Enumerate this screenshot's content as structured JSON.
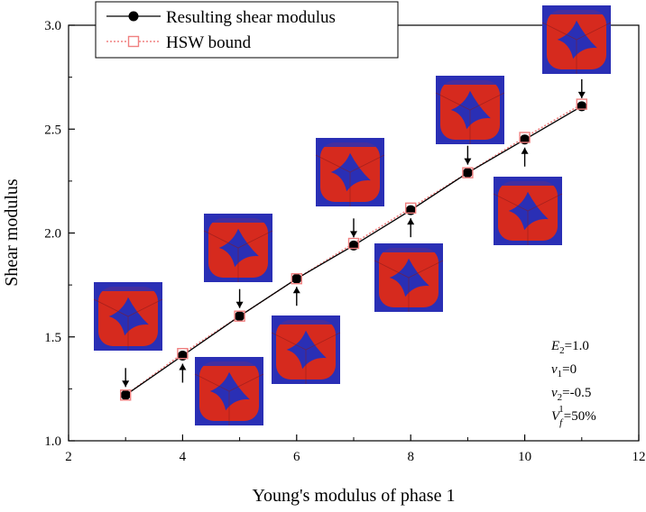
{
  "chart_data": {
    "type": "line",
    "xlabel": "Young's modulus of phase 1",
    "ylabel": "Shear modulus",
    "xlim": [
      2,
      12
    ],
    "ylim": [
      1.0,
      3.0
    ],
    "x_ticks": [
      2,
      4,
      6,
      8,
      10,
      12
    ],
    "y_ticks": [
      1.0,
      1.5,
      2.0,
      2.5,
      3.0
    ],
    "x_tick_labels": [
      "2",
      "4",
      "6",
      "8",
      "10",
      "12"
    ],
    "y_tick_labels": [
      "1.0",
      "1.5",
      "2.0",
      "2.5",
      "3.0"
    ],
    "grid": false,
    "legend_position": "top-left",
    "x": [
      3,
      4,
      5,
      6,
      7,
      8,
      9,
      10,
      11
    ],
    "series": [
      {
        "name": "Resulting shear modulus",
        "color": "#000000",
        "marker": "filled-circle",
        "values": [
          1.22,
          1.41,
          1.6,
          1.78,
          1.94,
          2.11,
          2.29,
          2.45,
          2.61
        ]
      },
      {
        "name": "HSW bound",
        "color": "#f08080",
        "marker": "open-square",
        "style": "dotted",
        "values": [
          1.22,
          1.42,
          1.6,
          1.78,
          1.95,
          2.12,
          2.29,
          2.46,
          2.62
        ]
      }
    ],
    "annotation": {
      "E2": "1.0",
      "nu1": "0",
      "nu2": "-0.5",
      "Vf1": "50%"
    },
    "inset_colors": {
      "phase_outer": "#d62a1e",
      "phase_inner": "#2a2fb5"
    }
  }
}
